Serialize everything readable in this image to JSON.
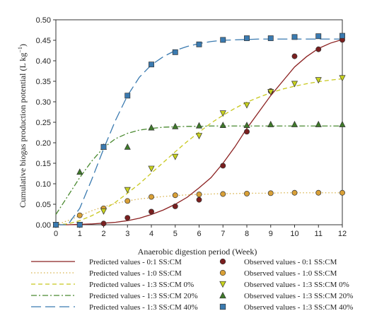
{
  "chart_data": {
    "type": "scatter",
    "xlabel": "Anaerobic digestion period (Week)",
    "ylabel": "Cumulative biogas production potential (L kg",
    "ylabel_sup": "−1",
    "ylabel_end": ")",
    "xlim": [
      0,
      12
    ],
    "ylim": [
      0,
      0.5
    ],
    "x_ticks": [
      "0",
      "1",
      "2",
      "3",
      "4",
      "5",
      "6",
      "7",
      "8",
      "9",
      "10",
      "11",
      "12"
    ],
    "y_ticks": [
      "0.00",
      "0.05",
      "0.10",
      "0.15",
      "0.20",
      "0.25",
      "0.30",
      "0.35",
      "0.40",
      "0.45",
      "0.50"
    ],
    "grid": false,
    "legend_position": "bottom",
    "predicted_series": [
      {
        "name": "Predicted values - 0:1 SS:CM",
        "color": "#8b2020",
        "dash": "solid",
        "x": [
          0,
          0.5,
          1,
          1.5,
          2,
          2.5,
          3,
          3.5,
          4,
          4.5,
          5,
          5.5,
          6,
          6.5,
          7,
          7.5,
          8,
          8.5,
          9,
          9.5,
          10,
          10.5,
          11,
          11.5,
          12
        ],
        "y": [
          0,
          0,
          0.001,
          0.002,
          0.004,
          0.006,
          0.01,
          0.016,
          0.025,
          0.036,
          0.05,
          0.067,
          0.09,
          0.115,
          0.15,
          0.19,
          0.235,
          0.275,
          0.315,
          0.35,
          0.385,
          0.41,
          0.43,
          0.443,
          0.452
        ]
      },
      {
        "name": "Predicted values - 1:0 SS:CM",
        "color": "#d8b24a",
        "dash": "dot",
        "x": [
          0,
          0.5,
          1,
          1.5,
          2,
          2.5,
          3,
          3.5,
          4,
          4.5,
          5,
          5.5,
          6,
          6.5,
          7,
          7.5,
          8,
          8.5,
          9,
          9.5,
          10,
          10.5,
          11,
          11.5,
          12
        ],
        "y": [
          0,
          0.01,
          0.022,
          0.034,
          0.044,
          0.052,
          0.058,
          0.063,
          0.066,
          0.069,
          0.071,
          0.073,
          0.074,
          0.075,
          0.076,
          0.076,
          0.077,
          0.077,
          0.077,
          0.078,
          0.078,
          0.078,
          0.078,
          0.078,
          0.078
        ]
      },
      {
        "name": "Predicted values - 1:3 SS:CM 0%",
        "color": "#c8c81e",
        "dash": "dash",
        "x": [
          0,
          0.5,
          1,
          1.5,
          2,
          2.5,
          3,
          3.5,
          4,
          4.5,
          5,
          5.5,
          6,
          6.5,
          7,
          7.5,
          8,
          8.5,
          9,
          9.5,
          10,
          10.5,
          11,
          11.5,
          12
        ],
        "y": [
          0,
          0.002,
          0.01,
          0.022,
          0.037,
          0.055,
          0.077,
          0.1,
          0.126,
          0.152,
          0.178,
          0.203,
          0.226,
          0.248,
          0.267,
          0.284,
          0.299,
          0.311,
          0.322,
          0.331,
          0.338,
          0.344,
          0.349,
          0.353,
          0.356
        ]
      },
      {
        "name": "Predicted values - 1:3 SS:CM 20%",
        "color": "#4a8a30",
        "dash": "dashdot",
        "x": [
          0,
          0.5,
          1,
          1.5,
          2,
          2.5,
          3,
          3.5,
          4,
          4.5,
          5,
          5.5,
          6,
          6.5,
          7,
          7.5,
          8,
          8.5,
          9,
          9.5,
          10,
          10.5,
          11,
          11.5,
          12
        ],
        "y": [
          0.025,
          0.07,
          0.115,
          0.155,
          0.188,
          0.21,
          0.223,
          0.231,
          0.235,
          0.238,
          0.239,
          0.24,
          0.24,
          0.241,
          0.241,
          0.241,
          0.241,
          0.241,
          0.241,
          0.241,
          0.241,
          0.241,
          0.241,
          0.241,
          0.241
        ]
      },
      {
        "name": "Predicted values - 1:3 SS:CM 40%",
        "color": "#3a7ab0",
        "dash": "longdash",
        "x": [
          0,
          0.5,
          1,
          1.5,
          2,
          2.5,
          3,
          3.5,
          4,
          4.5,
          5,
          5.5,
          6,
          6.5,
          7,
          7.5,
          8,
          8.5,
          9,
          9.5,
          10,
          10.5,
          11,
          11.5,
          12
        ],
        "y": [
          0,
          0,
          0.04,
          0.11,
          0.185,
          0.255,
          0.315,
          0.36,
          0.39,
          0.41,
          0.425,
          0.435,
          0.442,
          0.447,
          0.45,
          0.451,
          0.452,
          0.453,
          0.453,
          0.453,
          0.453,
          0.453,
          0.453,
          0.453,
          0.453
        ]
      }
    ],
    "observed_series": [
      {
        "name": "Observed values - 0:1 SS:CM",
        "marker": "circle",
        "fill": "#7a1f1f",
        "x": [
          0,
          1,
          2,
          3,
          4,
          5,
          6,
          7,
          8,
          9,
          10,
          11,
          12
        ],
        "y": [
          0,
          0,
          0.003,
          0.017,
          0.032,
          0.045,
          0.061,
          0.144,
          0.227,
          0.326,
          0.411,
          0.428,
          0.451
        ]
      },
      {
        "name": "Observed values - 1:0 SS:CM",
        "marker": "circle",
        "fill": "#d9a037",
        "x": [
          0,
          1,
          2,
          3,
          4,
          5,
          6,
          7,
          8,
          9,
          10,
          11,
          12
        ],
        "y": [
          0,
          0.023,
          0.04,
          0.058,
          0.068,
          0.072,
          0.074,
          0.075,
          0.076,
          0.077,
          0.078,
          0.078,
          0.078
        ]
      },
      {
        "name": "Observed values - 1:3 SS:CM 0%",
        "marker": "triangle-down",
        "fill": "#c8d21e",
        "x": [
          0,
          1,
          2,
          3,
          4,
          5,
          6,
          7,
          8,
          9,
          10,
          11,
          12
        ],
        "y": [
          0,
          0,
          0.033,
          0.085,
          0.137,
          0.166,
          0.217,
          0.272,
          0.292,
          0.324,
          0.344,
          0.353,
          0.358
        ]
      },
      {
        "name": "Observed values - 1:3 SS:CM 20%",
        "marker": "triangle-up",
        "fill": "#3f7a2a",
        "x": [
          0,
          1,
          2,
          3,
          4,
          5,
          6,
          7,
          8,
          9,
          10,
          11,
          12
        ],
        "y": [
          0,
          0.129,
          0.19,
          0.19,
          0.237,
          0.24,
          0.242,
          0.243,
          0.243,
          0.245,
          0.245,
          0.245,
          0.245
        ]
      },
      {
        "name": "Observed values - 1:3 SS:CM 40%",
        "marker": "square",
        "fill": "#3a7ab0",
        "x": [
          0,
          1,
          2,
          3,
          4,
          5,
          6,
          7,
          8,
          9,
          10,
          11,
          12
        ],
        "y": [
          0,
          0,
          0.19,
          0.315,
          0.391,
          0.421,
          0.44,
          0.451,
          0.455,
          0.455,
          0.458,
          0.46,
          0.461
        ]
      }
    ]
  }
}
